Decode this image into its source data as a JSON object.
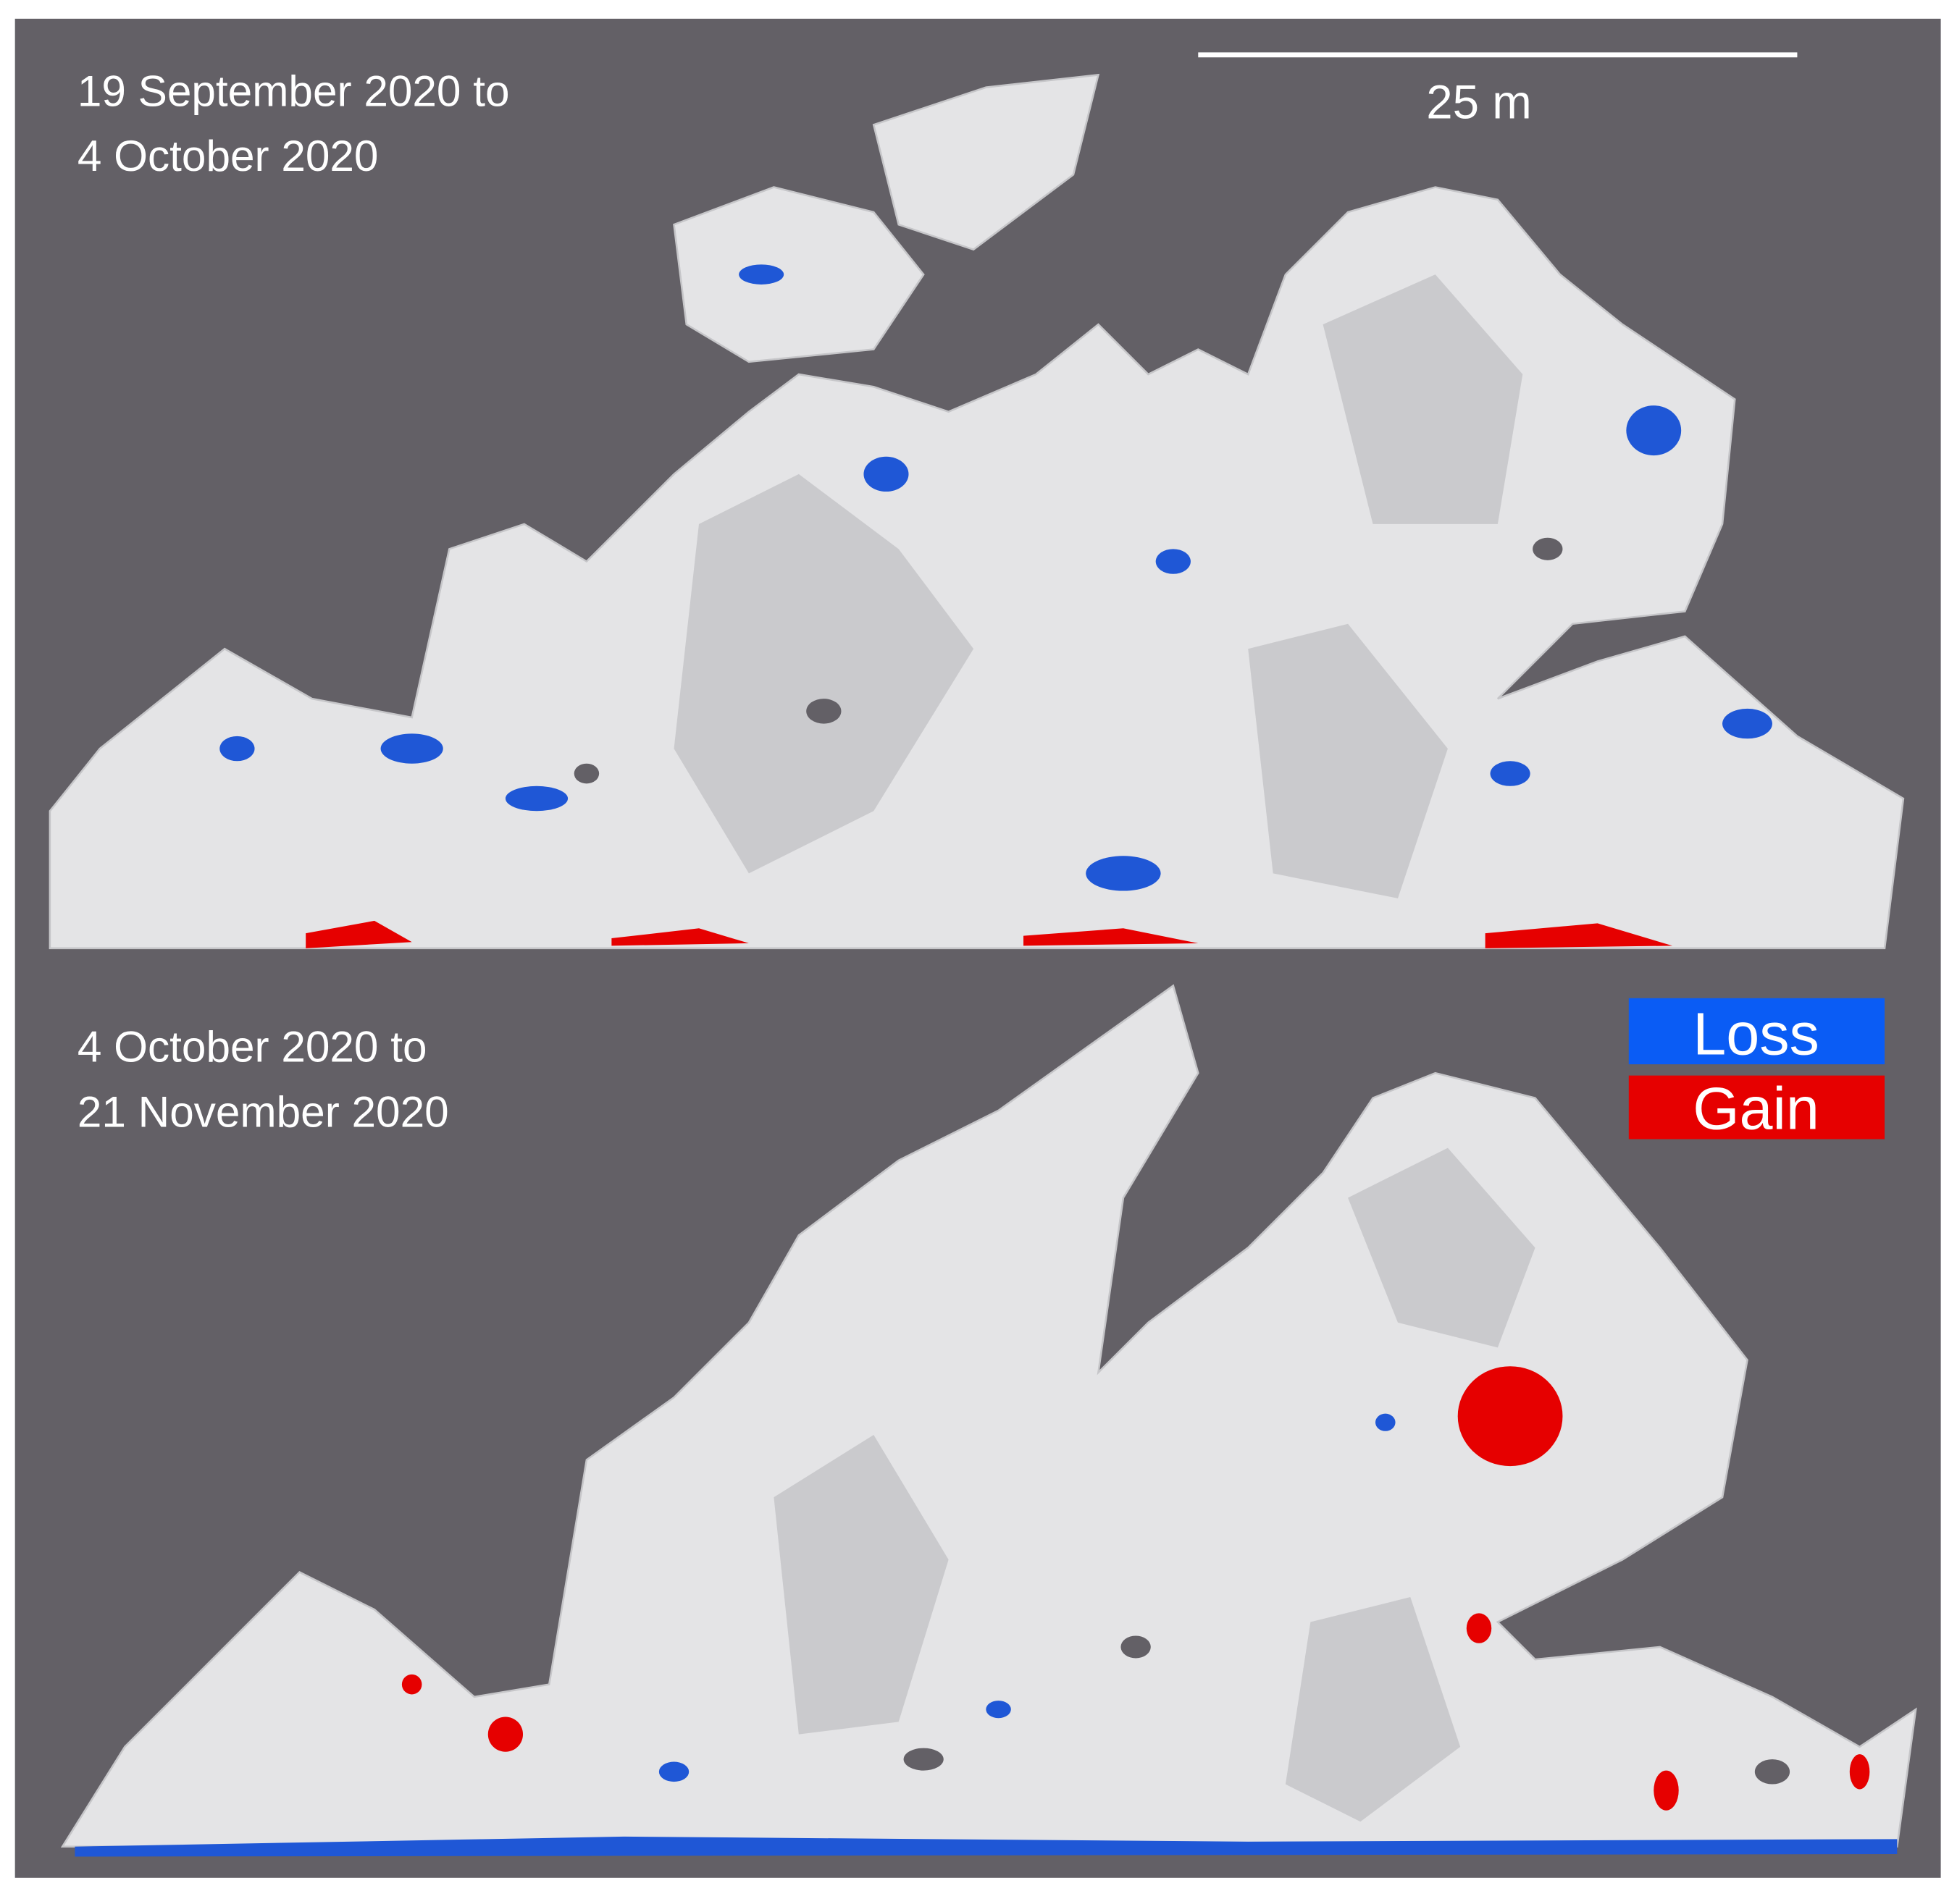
{
  "panels": [
    {
      "label_lines": [
        "19 September 2020 to",
        "4 October 2020"
      ]
    },
    {
      "label_lines": [
        "4 October 2020 to",
        "21 November 2020"
      ]
    }
  ],
  "scale_bar": {
    "label": "25 m"
  },
  "legend": [
    {
      "label": "Loss"
    },
    {
      "label": "Gain"
    }
  ]
}
